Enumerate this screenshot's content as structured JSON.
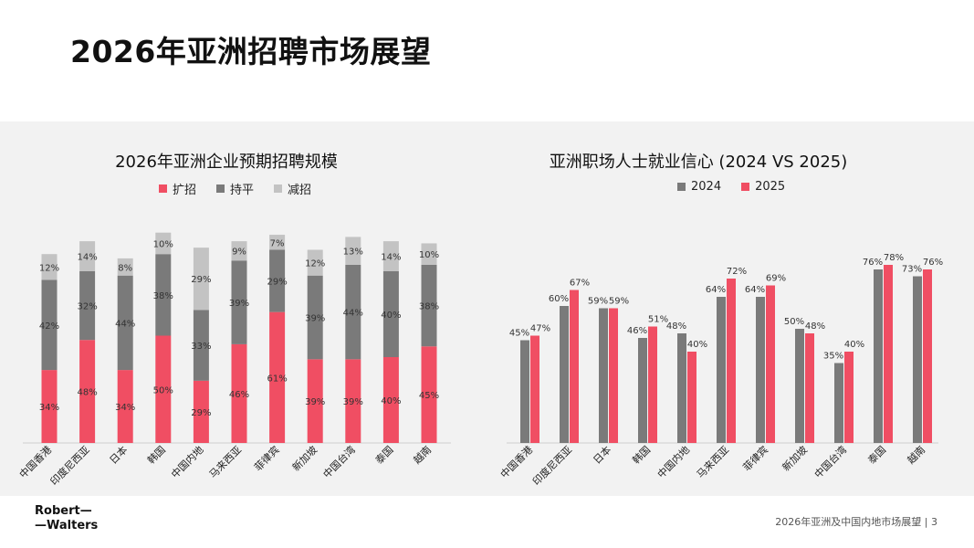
{
  "page": {
    "title": "2026年亚洲招聘市场展望",
    "logo_line1": "Robert—",
    "logo_line2": "—Walters",
    "footer_text": "2026年亚洲及中国内地市场展望",
    "page_number": "3"
  },
  "colors": {
    "expand": "#f04e63",
    "flat": "#7a7a7a",
    "reduce": "#c3c3c3",
    "y2024": "#7a7a7a",
    "y2025": "#f04e63"
  },
  "chart_data": [
    {
      "type": "bar",
      "stacked": true,
      "title": "2026年亚洲企业预期招聘规模",
      "categories": [
        "中国香港",
        "印度尼西亚",
        "日本",
        "韩国",
        "中国内地",
        "马来西亚",
        "菲律宾",
        "新加坡",
        "中国台湾",
        "泰国",
        "越南"
      ],
      "series": [
        {
          "name": "扩招",
          "values": [
            34,
            48,
            34,
            50,
            29,
            46,
            61,
            39,
            39,
            40,
            45
          ]
        },
        {
          "name": "持平",
          "values": [
            42,
            32,
            44,
            38,
            33,
            39,
            29,
            39,
            44,
            40,
            38
          ]
        },
        {
          "name": "减招",
          "values": [
            12,
            14,
            8,
            10,
            29,
            9,
            7,
            12,
            13,
            14,
            10
          ]
        }
      ],
      "value_suffix": "%",
      "ylim": [
        0,
        100
      ],
      "legend": "top"
    },
    {
      "type": "bar",
      "stacked": false,
      "title": "亚洲职场人士就业信心 (2024 VS 2025)",
      "categories": [
        "中国香港",
        "印度尼西亚",
        "日本",
        "韩国",
        "中国内地",
        "马来西亚",
        "菲律宾",
        "新加坡",
        "中国台湾",
        "泰国",
        "越南"
      ],
      "series": [
        {
          "name": "2024",
          "values": [
            45,
            60,
            59,
            46,
            48,
            64,
            64,
            50,
            35,
            76,
            73
          ]
        },
        {
          "name": "2025",
          "values": [
            47,
            67,
            59,
            51,
            40,
            72,
            69,
            48,
            40,
            78,
            76
          ]
        }
      ],
      "value_suffix": "%",
      "ylim": [
        0,
        100
      ],
      "legend": "top"
    }
  ]
}
